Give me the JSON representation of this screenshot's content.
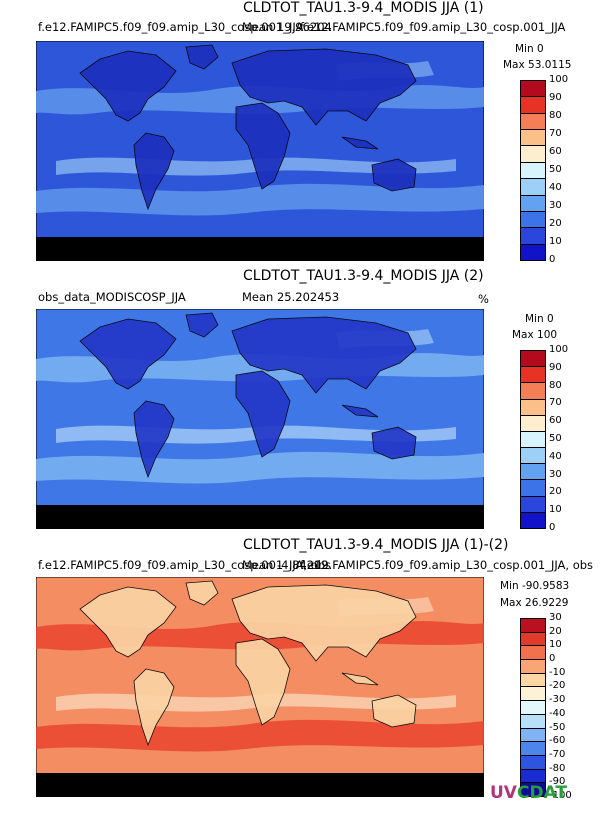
{
  "panels": [
    {
      "title": "CLDTOT_TAU1.3-9.4_MODIS JJA (1)",
      "left_label": "f.e12.FAMIPC5.f09_f09.amip_L30_cosp.001_JJA",
      "mean_label": "Mean 19.96204",
      "right_label": "f.e12.FAMIPC5.f09_f09.amip_L30_cosp.001_JJA",
      "min_label": "Min 0",
      "max_label": "Max 53.0115",
      "colorbar": {
        "ticks": [
          "0",
          "10",
          "20",
          "30",
          "40",
          "50",
          "60",
          "70",
          "80",
          "90",
          "100"
        ],
        "colors": [
          "#1212c8",
          "#2b46dc",
          "#3d73e8",
          "#63a2f0",
          "#9cd0f6",
          "#d8f4fc",
          "#fdeed0",
          "#fbbf8a",
          "#f47e56",
          "#e83226",
          "#b40a1e"
        ]
      },
      "map": {
        "base": "#2d57d8",
        "land": "#1d2fbe",
        "cloud": "#5f95ec",
        "bright": "#a6d6f8",
        "antarctic": "#000000"
      }
    },
    {
      "title": "CLDTOT_TAU1.3-9.4_MODIS JJA (2)",
      "left_label": "obs_data_MODISCOSP_JJA",
      "mean_label": "Mean 25.202453",
      "right_label": "%",
      "min_label": "Min 0",
      "max_label": "Max 100",
      "colorbar": {
        "ticks": [
          "0",
          "10",
          "20",
          "30",
          "40",
          "50",
          "60",
          "70",
          "80",
          "90",
          "100"
        ],
        "colors": [
          "#1212c8",
          "#2b46dc",
          "#3d73e8",
          "#63a2f0",
          "#9cd0f6",
          "#d8f4fc",
          "#fdeed0",
          "#fbbf8a",
          "#f47e56",
          "#e83226",
          "#b40a1e"
        ]
      },
      "map": {
        "base": "#3f77e6",
        "land": "#2338c8",
        "cloud": "#7db4f2",
        "bright": "#c4e8fb",
        "antarctic": "#000000"
      }
    },
    {
      "title": "CLDTOT_TAU1.3-9.4_MODIS JJA (1)-(2)",
      "left_label": "f.e12.FAMIPC5.f09_f09.amip_L30_cosp.001_JJA, obs",
      "mean_label": "Mean -4.84209",
      "right_label": "f.e12.FAMIPC5.f09_f09.amip_L30_cosp.001_JJA, obs",
      "min_label": "Min -90.9583",
      "max_label": "Max 26.9229",
      "colorbar": {
        "ticks": [
          "-100",
          "-90",
          "-80",
          "-70",
          "-60",
          "-50",
          "-40",
          "-30",
          "-20",
          "-10",
          "0",
          "10",
          "20",
          "30"
        ],
        "colors": [
          "#0c0c9c",
          "#1c2bd0",
          "#2e55df",
          "#4d86ea",
          "#7fb3f3",
          "#b8e0f8",
          "#e4f7fd",
          "#fdf2d6",
          "#fcd6a4",
          "#f9a676",
          "#f1704e",
          "#e23a2a",
          "#ba1020"
        ]
      },
      "map": {
        "base": "#f58d62",
        "land": "#fbd3a4",
        "cloud": "#e9452f",
        "bright": "#fdeed3",
        "antarctic": "#000000"
      }
    }
  ],
  "logo": {
    "u": "UV",
    "c": "CDAT"
  }
}
